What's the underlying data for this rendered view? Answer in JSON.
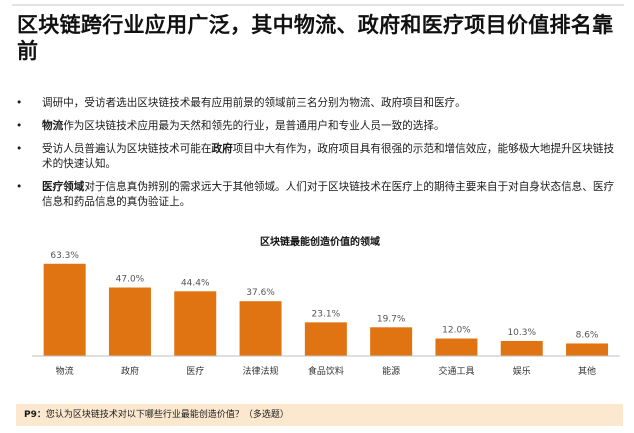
{
  "title": "区块链跨行业应用广泛，其中物流、政府和医疗项目价值排名靠前",
  "bullets": [
    {
      "marker": "•",
      "lead": "",
      "text": "调研中，受访者选出区块链技术最有应用前景的领域前三名分别为物流、政府项目和医疗。"
    },
    {
      "marker": "•",
      "lead": "物流",
      "text": "作为区块链技术应用最为天然和领先的行业，是普通用户和专业人员一致的选择。"
    },
    {
      "marker": "•",
      "pre": "受访人员普遍认为区块链技术可能在",
      "mid": "政府",
      "text": "项目中大有作为，政府项目具有很强的示范和增信效应，能够极大地提升区块链技术的快速认知。"
    },
    {
      "marker": "•",
      "lead": "医疗领域",
      "text": "对于信息真伪辨别的需求远大于其他领域。人们对于区块链技术在医疗上的期待主要来自于对自身状态信息、医疗信息和药品信息的真伪验证上。"
    }
  ],
  "footer": {
    "label": "P9：",
    "text": "您认为区块链技术对以下哪些行业最能创造价值？（多选题）"
  },
  "chart_data": {
    "type": "bar",
    "title": "区块链最能创造价值的领域",
    "categories": [
      "物流",
      "政府",
      "医疗",
      "法律法规",
      "食品饮料",
      "能源",
      "交通工具",
      "娱乐",
      "其他"
    ],
    "values": [
      63.3,
      47.0,
      44.4,
      37.6,
      23.1,
      19.7,
      12.0,
      10.3,
      8.6
    ],
    "value_labels": [
      "63.3%",
      "47.0%",
      "44.4%",
      "37.6%",
      "23.1%",
      "19.7%",
      "12.0%",
      "10.3%",
      "8.6%"
    ],
    "xlabel": "",
    "ylabel": "",
    "ylim": [
      0,
      70
    ],
    "bar_color": "#e07413",
    "grid": false
  }
}
